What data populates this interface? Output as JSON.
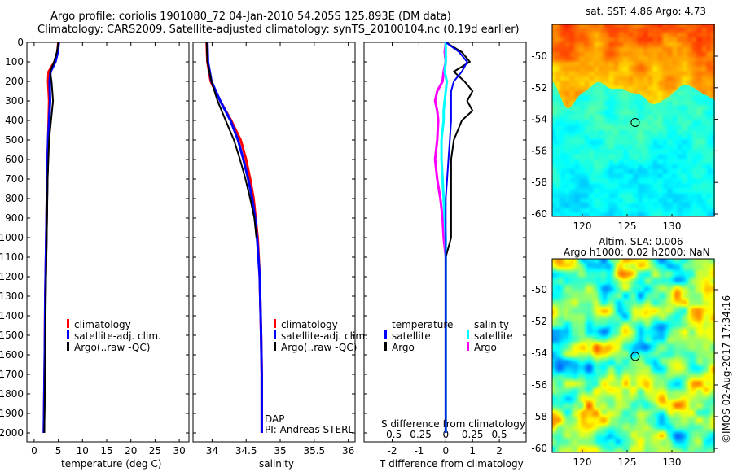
{
  "title": {
    "line1": "Argo profile: coriolis 1901080_72 04-Jan-2010 54.205S 125.893E (DM data)",
    "line2": "Climatology: CARS2009. Satellite-adjusted climatology: synTS_20100104.nc (0.19d earlier)"
  },
  "colors": {
    "climatology": "#ff0000",
    "satellite": "#0000ff",
    "argo": "#000000",
    "sal_satellite": "#00ffff",
    "sal_argo": "#ff00ff"
  },
  "legend": {
    "climatology": "climatology",
    "satellite": "satellite-adj. clim.",
    "argo": "Argo(..raw -QC)",
    "temperature": "temperature",
    "salinity": "salinity",
    "sat": "satellite",
    "argo_short": "Argo"
  },
  "annot": {
    "dap": "DAP",
    "pi": "PI: Andreas STERL",
    "copyright": "©IMOS 02-Aug-2017 17:34:16"
  },
  "maps": {
    "sst_title": "sat. SST: 4.86 Argo: 4.73",
    "sla_title1": "Altim. SLA: 0.006",
    "sla_title2": "Argo h1000: 0.02 h2000: NaN"
  },
  "chart_data": [
    {
      "type": "line",
      "name": "temperature",
      "xlabel": "temperature (deg C)",
      "ylabel": "",
      "xlim": [
        -1.5,
        32
      ],
      "ylim": [
        2050,
        0
      ],
      "xticks": [
        "0",
        "5",
        "10",
        "15",
        "20",
        "25",
        "30"
      ],
      "yticks": [
        "0",
        "100",
        "200",
        "300",
        "400",
        "500",
        "600",
        "700",
        "800",
        "900",
        "1000",
        "1100",
        "1200",
        "1300",
        "1400",
        "1500",
        "1600",
        "1700",
        "1800",
        "1900",
        "2000"
      ],
      "depth": [
        0,
        50,
        100,
        150,
        200,
        300,
        400,
        500,
        700,
        1000,
        1300,
        1600,
        2000
      ],
      "series": [
        {
          "name": "climatology",
          "values": [
            5.0,
            4.8,
            4.2,
            3.0,
            2.9,
            3.1,
            3.0,
            2.9,
            2.7,
            2.5,
            2.3,
            2.2,
            2.0
          ]
        },
        {
          "name": "satellite-adj. clim.",
          "values": [
            5.1,
            4.9,
            4.4,
            3.4,
            3.2,
            3.3,
            3.1,
            2.9,
            2.7,
            2.5,
            2.3,
            2.2,
            2.0
          ]
        },
        {
          "name": "Argo",
          "values": [
            5.0,
            4.7,
            4.1,
            3.3,
            3.6,
            3.9,
            3.5,
            3.1,
            2.8,
            2.6,
            2.4,
            2.3,
            2.1
          ]
        }
      ]
    },
    {
      "type": "line",
      "name": "salinity",
      "xlabel": "salinity",
      "xlim": [
        33.72,
        36.1
      ],
      "ylim": [
        2050,
        0
      ],
      "xticks": [
        "34",
        "34.5",
        "35",
        "35.5",
        "36"
      ],
      "depth": [
        0,
        100,
        200,
        300,
        400,
        500,
        600,
        700,
        800,
        900,
        1000,
        1200,
        1500,
        1700,
        2000
      ],
      "series": [
        {
          "name": "climatology",
          "values": [
            33.92,
            33.93,
            33.98,
            34.12,
            34.28,
            34.42,
            34.5,
            34.56,
            34.61,
            34.64,
            34.67,
            34.7,
            34.72,
            34.73,
            34.73
          ]
        },
        {
          "name": "satellite-adj. clim.",
          "values": [
            33.93,
            33.94,
            33.99,
            34.12,
            34.27,
            34.38,
            34.46,
            34.53,
            34.59,
            34.63,
            34.66,
            34.7,
            34.72,
            34.73,
            34.73
          ]
        },
        {
          "name": "Argo",
          "values": [
            33.92,
            33.93,
            33.99,
            34.08,
            34.2,
            34.32,
            34.41,
            34.49,
            34.56,
            34.62,
            34.65
          ]
        }
      ]
    },
    {
      "type": "line",
      "name": "differences",
      "xlabel": "T difference from climatology",
      "x2label": "S difference from climatology",
      "xlim": [
        -3.05,
        3.0
      ],
      "xticks": [
        "-2",
        "-1",
        "0",
        "1",
        "2"
      ],
      "x2ticks": [
        "-0.5",
        "-0.25",
        "0",
        "0.25",
        "0.5"
      ],
      "depth": [
        0,
        50,
        100,
        150,
        200,
        250,
        300,
        350,
        400,
        500,
        600,
        700,
        800,
        900,
        1000,
        1100,
        1300,
        2000
      ],
      "series": [
        {
          "name": "T satellite",
          "values": [
            0,
            0.5,
            0.8,
            0.6,
            0.3,
            0.2,
            0.2,
            0.2,
            0.2,
            0.15,
            0.1,
            0.05,
            0,
            0,
            0,
            0,
            0,
            0
          ]
        },
        {
          "name": "T Argo",
          "values": [
            0,
            0.6,
            0.9,
            0.3,
            0.7,
            1.0,
            0.8,
            1.0,
            0.6,
            0.3,
            0.2,
            0.2,
            0.2,
            0.2,
            0.2,
            0,
            0,
            0
          ]
        },
        {
          "name": "S satellite",
          "values": [
            0,
            0,
            0,
            -0.01,
            0.01,
            0,
            -0.01,
            -0.02,
            -0.02,
            -0.04,
            -0.04,
            -0.03,
            -0.02,
            -0.01,
            0,
            0,
            0,
            0
          ]
        },
        {
          "name": "S Argo",
          "values": [
            0,
            -0.01,
            0,
            -0.02,
            -0.03,
            -0.08,
            -0.1,
            -0.08,
            -0.07,
            -0.08,
            -0.1,
            -0.08,
            -0.05,
            -0.03,
            -0.02,
            0,
            0,
            0
          ]
        }
      ]
    },
    {
      "type": "heatmap",
      "name": "sst-map",
      "yticks": [
        "-50",
        "-52",
        "-54",
        "-56",
        "-58",
        "-60"
      ],
      "xticks": [
        "120",
        "125",
        "130"
      ],
      "marker": [
        125.9,
        -54.2
      ]
    },
    {
      "type": "heatmap",
      "name": "sla-map",
      "yticks": [
        "-50",
        "-52",
        "-54",
        "-56",
        "-58",
        "-60"
      ],
      "xticks": [
        "120",
        "125",
        "130"
      ],
      "marker": [
        125.9,
        -54.2
      ]
    }
  ]
}
